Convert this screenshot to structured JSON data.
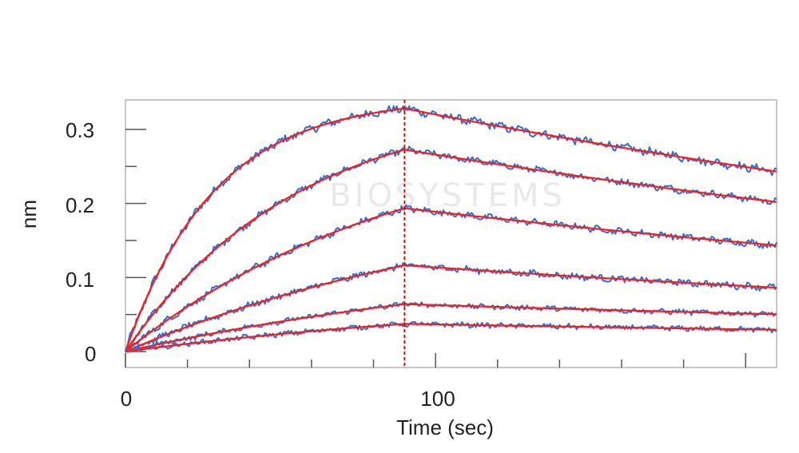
{
  "chart_data": {
    "type": "line",
    "xlabel": "Time (sec)",
    "ylabel": "nm",
    "xlim": [
      0,
      210
    ],
    "ylim": [
      -0.005,
      0.34
    ],
    "x_ticks": [
      0,
      100
    ],
    "y_ticks": [
      0,
      0.1,
      0.2,
      0.3
    ],
    "x_tick_labels": [
      "0",
      "100"
    ],
    "y_tick_labels": [
      "0",
      "0.1",
      "0.2",
      "0.3"
    ],
    "association_end": 90,
    "x_end": 210,
    "colors": {
      "measured": "#2e6fd6",
      "fit": "#ff1a1a",
      "marker_line": "#e01010"
    },
    "series": [
      {
        "association_rate": 0.035,
        "plateau": 0.343,
        "dissociation_rate": 0.0025,
        "noise": 0.005
      },
      {
        "association_rate": 0.018,
        "plateau": 0.34,
        "dissociation_rate": 0.0025,
        "noise": 0.004
      },
      {
        "association_rate": 0.011,
        "plateau": 0.308,
        "dissociation_rate": 0.0025,
        "noise": 0.004
      },
      {
        "association_rate": 0.008,
        "plateau": 0.227,
        "dissociation_rate": 0.0025,
        "noise": 0.004
      },
      {
        "association_rate": 0.007,
        "plateau": 0.137,
        "dissociation_rate": 0.002,
        "noise": 0.003
      },
      {
        "association_rate": 0.007,
        "plateau": 0.08,
        "dissociation_rate": 0.002,
        "noise": 0.003
      }
    ],
    "grid": false,
    "legend": "none"
  },
  "watermark": "BIOSYSTEMS"
}
